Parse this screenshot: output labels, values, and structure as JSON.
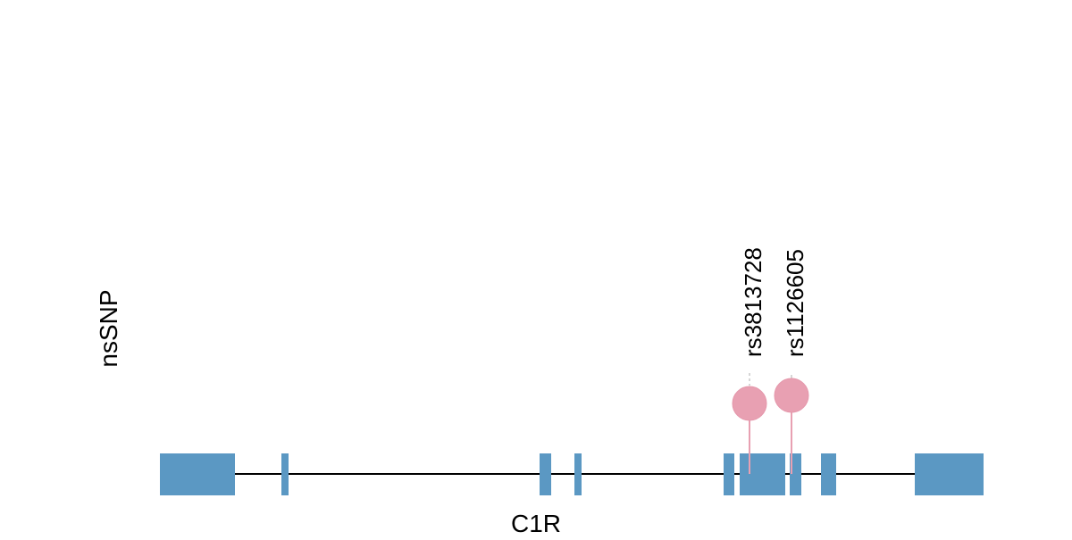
{
  "track": {
    "label": "nsSNP"
  },
  "gene": {
    "name": "C1R",
    "exon_color": "#5b98c3",
    "exon_count": 10
  },
  "variants": {
    "color": "#e8a0b2",
    "items": [
      {
        "id": "rs3813728"
      },
      {
        "id": "rs1126605"
      }
    ]
  }
}
